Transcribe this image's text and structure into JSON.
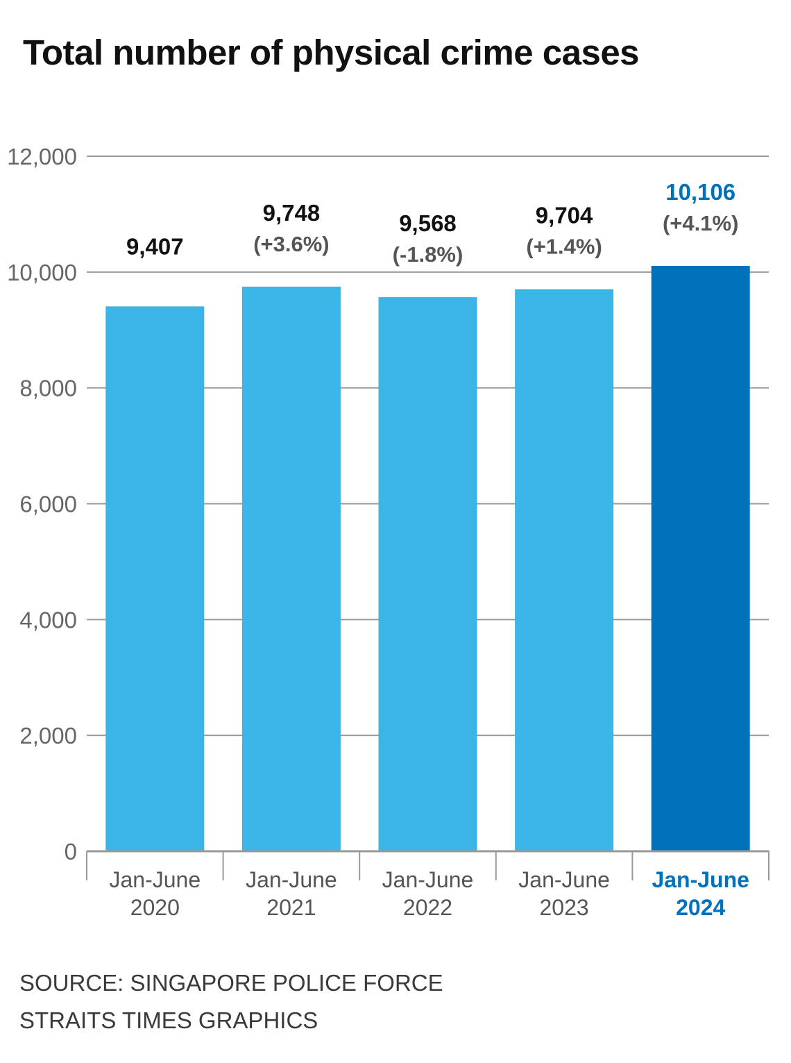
{
  "chart_data": {
    "type": "bar",
    "title": "Total number of physical crime cases",
    "categories": [
      [
        "Jan-June",
        "2020"
      ],
      [
        "Jan-June",
        "2021"
      ],
      [
        "Jan-June",
        "2022"
      ],
      [
        "Jan-June",
        "2023"
      ],
      [
        "Jan-June",
        "2024"
      ]
    ],
    "values": [
      9407,
      9748,
      9568,
      9704,
      10106
    ],
    "value_labels": [
      "9,407",
      "9,748",
      "9,568",
      "9,704",
      "10,106"
    ],
    "change_labels": [
      "",
      "(+3.6%)",
      "(-1.8%)",
      "(+1.4%)",
      "(+4.1%)"
    ],
    "highlight_index": 4,
    "yticks": [
      0,
      2000,
      4000,
      6000,
      8000,
      10000,
      12000
    ],
    "ytick_labels": [
      "0",
      "2,000",
      "4,000",
      "6,000",
      "8,000",
      "10,000",
      "12,000"
    ],
    "ylim": [
      0,
      12000
    ],
    "grid": true,
    "xlabel": "",
    "ylabel": "",
    "colors": {
      "bar": "#3bb4e7",
      "highlight_bar": "#0072bb",
      "highlight_text": "#0072bb",
      "value_text": "#111111",
      "change_text": "#555555",
      "category_text": "#555555",
      "tick_text": "#666666",
      "grid": "#999999",
      "axis": "#999999"
    }
  },
  "footer": {
    "source": "SOURCE: SINGAPORE POLICE FORCE",
    "credit": "STRAITS TIMES GRAPHICS"
  }
}
